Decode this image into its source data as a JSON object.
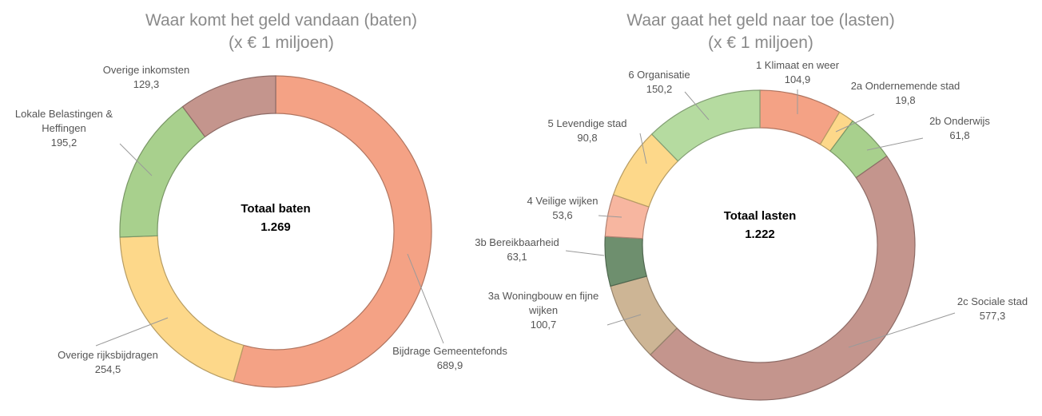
{
  "chart_data": [
    {
      "type": "pie",
      "style": "donut",
      "title": "Waar komt het geld vandaan (baten)",
      "subtitle": "(x € 1 miljoen)",
      "center_label": "Totaal baten",
      "center_value": "1.269",
      "categories": [
        "Bijdrage Gemeentefonds",
        "Overige rijksbijdragen",
        "Lokale Belastingen & Heffingen",
        "Overige inkomsten"
      ],
      "value_labels": [
        "689,9",
        "254,5",
        "195,2",
        "129,3"
      ],
      "values": [
        689.9,
        254.5,
        195.2,
        129.3
      ],
      "colors": [
        "#f4a285",
        "#fdd88a",
        "#a8d08d",
        "#c4958d"
      ]
    },
    {
      "type": "pie",
      "style": "donut",
      "title": "Waar gaat het geld naar toe (lasten)",
      "subtitle": "(x € 1 miljoen)",
      "center_label": "Totaal lasten",
      "center_value": "1.222",
      "categories": [
        "1 Klimaat en weer",
        "2a Ondernemende stad",
        "2b Onderwijs",
        "2c Sociale stad",
        "3a Woningbouw en fijne wijken",
        "3b Bereikbaarheid",
        "4 Veilige wijken",
        "5 Levendige stad",
        "6 Organisatie"
      ],
      "value_labels": [
        "104,9",
        "19,8",
        "61,8",
        "577,3",
        "100,7",
        "63,1",
        "53,6",
        "90,8",
        "150,2"
      ],
      "values": [
        104.9,
        19.8,
        61.8,
        577.3,
        100.7,
        63.1,
        53.6,
        90.8,
        150.2
      ],
      "colors": [
        "#f4a285",
        "#fdd88a",
        "#a8d08d",
        "#c4958d",
        "#cdb595",
        "#6e8f6e",
        "#f7b6a0",
        "#fdd88a",
        "#b5dba0"
      ]
    }
  ]
}
